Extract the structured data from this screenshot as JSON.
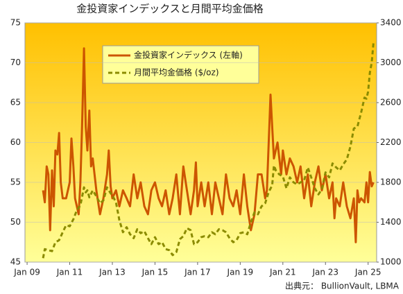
{
  "chart_data": {
    "type": "line",
    "title": "金投資家インデックスと月間平均金価格",
    "source": "出典元： BullionVault, LBMA",
    "xlim": [
      2008.9,
      2025.4
    ],
    "xticks": [
      {
        "value": 2009,
        "label": "Jan 09"
      },
      {
        "value": 2011,
        "label": "Jan 11"
      },
      {
        "value": 2013,
        "label": "Jan 13"
      },
      {
        "value": 2015,
        "label": "Jan 15"
      },
      {
        "value": 2017,
        "label": "Jan 17"
      },
      {
        "value": 2019,
        "label": "Jan 19"
      },
      {
        "value": 2021,
        "label": "Jan 21"
      },
      {
        "value": 2023,
        "label": "Jan 23"
      },
      {
        "value": 2025,
        "label": "Jan 25"
      }
    ],
    "ylim": [
      45,
      75
    ],
    "yticks": [
      45,
      50,
      55,
      60,
      65,
      70,
      75
    ],
    "y2lim": [
      1000,
      3400
    ],
    "y2ticks": [
      1000,
      1400,
      1800,
      2200,
      2600,
      3000,
      3400
    ],
    "grid": true,
    "series": [
      {
        "name": "金投資家インデックス (左軸)",
        "color": "#cc5500",
        "dash": false,
        "x": [
          2009.75,
          2009.83,
          2009.92,
          2010.0,
          2010.08,
          2010.17,
          2010.25,
          2010.33,
          2010.42,
          2010.5,
          2010.58,
          2010.67,
          2010.83,
          2011.0,
          2011.08,
          2011.17,
          2011.25,
          2011.42,
          2011.5,
          2011.58,
          2011.67,
          2011.75,
          2011.83,
          2011.92,
          2012.0,
          2012.08,
          2012.25,
          2012.42,
          2012.58,
          2012.75,
          2012.83,
          2012.92,
          2013.0,
          2013.17,
          2013.33,
          2013.5,
          2013.67,
          2013.83,
          2014.0,
          2014.17,
          2014.33,
          2014.5,
          2014.67,
          2014.83,
          2015.0,
          2015.17,
          2015.33,
          2015.5,
          2015.67,
          2015.83,
          2016.0,
          2016.17,
          2016.33,
          2016.5,
          2016.67,
          2016.83,
          2016.92,
          2017.0,
          2017.17,
          2017.33,
          2017.5,
          2017.67,
          2017.83,
          2018.0,
          2018.17,
          2018.33,
          2018.5,
          2018.67,
          2018.83,
          2019.0,
          2019.17,
          2019.33,
          2019.5,
          2019.67,
          2019.83,
          2020.0,
          2020.17,
          2020.25,
          2020.42,
          2020.5,
          2020.58,
          2020.75,
          2020.92,
          2021.0,
          2021.17,
          2021.33,
          2021.5,
          2021.67,
          2021.83,
          2022.0,
          2022.17,
          2022.33,
          2022.5,
          2022.67,
          2022.83,
          2023.0,
          2023.17,
          2023.33,
          2023.42,
          2023.5,
          2023.67,
          2023.83,
          2024.0,
          2024.17,
          2024.33,
          2024.42,
          2024.5,
          2024.58,
          2024.67,
          2024.83,
          2024.92,
          2025.0,
          2025.08,
          2025.17,
          2025.25
        ],
        "values": [
          54,
          52.5,
          57,
          56,
          49,
          56.5,
          52,
          59,
          58.5,
          61.2,
          55,
          53,
          53,
          55,
          60.5,
          57,
          53,
          51,
          55,
          62,
          71.8,
          62,
          59,
          64,
          57,
          58,
          54,
          51,
          53,
          56,
          59,
          54.5,
          53,
          54,
          52,
          54,
          53,
          52,
          56,
          53,
          55,
          52,
          51,
          54,
          55,
          53,
          52,
          54,
          51,
          53,
          56,
          51,
          57,
          54,
          51,
          54,
          57.5,
          52,
          55,
          52,
          55,
          51,
          55,
          53,
          51,
          56,
          53,
          52,
          54,
          51,
          56,
          52,
          49,
          51,
          56,
          56,
          53,
          54,
          66,
          62,
          58,
          60,
          56,
          59,
          56,
          58,
          57,
          55,
          57,
          53,
          56,
          52,
          55,
          57,
          54,
          56,
          53,
          55,
          50.5,
          53,
          52,
          55,
          52,
          50.5,
          53,
          47.5,
          54,
          52.5,
          53,
          52.5,
          55,
          52.5,
          56.3,
          54.5,
          55
        ]
      },
      {
        "name": "月間平均金価格 ($/oz)",
        "color": "#8b8b00",
        "dash": true,
        "axis": "y2",
        "x": [
          2009.75,
          2009.83,
          2010.0,
          2010.17,
          2010.33,
          2010.5,
          2010.67,
          2010.83,
          2011.0,
          2011.17,
          2011.33,
          2011.5,
          2011.67,
          2011.75,
          2011.83,
          2011.92,
          2012.08,
          2012.25,
          2012.42,
          2012.58,
          2012.75,
          2012.92,
          2013.0,
          2013.17,
          2013.33,
          2013.5,
          2013.67,
          2013.83,
          2014.0,
          2014.17,
          2014.33,
          2014.5,
          2014.67,
          2014.83,
          2015.0,
          2015.17,
          2015.33,
          2015.5,
          2015.67,
          2015.83,
          2016.0,
          2016.17,
          2016.33,
          2016.5,
          2016.67,
          2016.83,
          2017.0,
          2017.17,
          2017.33,
          2017.5,
          2017.67,
          2017.83,
          2018.0,
          2018.17,
          2018.33,
          2018.5,
          2018.67,
          2018.83,
          2019.0,
          2019.17,
          2019.33,
          2019.5,
          2019.67,
          2019.83,
          2020.0,
          2020.17,
          2020.33,
          2020.5,
          2020.58,
          2020.67,
          2020.83,
          2021.0,
          2021.17,
          2021.33,
          2021.5,
          2021.67,
          2021.83,
          2022.0,
          2022.17,
          2022.33,
          2022.5,
          2022.67,
          2022.83,
          2023.0,
          2023.17,
          2023.33,
          2023.5,
          2023.67,
          2023.83,
          2024.0,
          2024.17,
          2024.33,
          2024.5,
          2024.67,
          2024.83,
          2024.92,
          2025.0,
          2025.08,
          2025.17,
          2025.25
        ],
        "values": [
          1040,
          1130,
          1120,
          1110,
          1200,
          1220,
          1300,
          1370,
          1360,
          1430,
          1520,
          1570,
          1750,
          1700,
          1720,
          1650,
          1720,
          1660,
          1590,
          1620,
          1750,
          1690,
          1670,
          1600,
          1420,
          1300,
          1350,
          1280,
          1240,
          1330,
          1290,
          1310,
          1240,
          1180,
          1250,
          1180,
          1200,
          1130,
          1120,
          1070,
          1100,
          1230,
          1260,
          1340,
          1320,
          1180,
          1200,
          1250,
          1260,
          1250,
          1300,
          1280,
          1330,
          1320,
          1300,
          1240,
          1200,
          1220,
          1290,
          1300,
          1280,
          1400,
          1500,
          1480,
          1560,
          1590,
          1700,
          1770,
          1970,
          1920,
          1880,
          1860,
          1740,
          1850,
          1800,
          1780,
          1800,
          1820,
          1950,
          1850,
          1740,
          1680,
          1730,
          1900,
          1850,
          1990,
          1950,
          1920,
          1980,
          2030,
          2160,
          2340,
          2360,
          2500,
          2650,
          2640,
          2710,
          2900,
          3000,
          3200
        ]
      }
    ]
  }
}
